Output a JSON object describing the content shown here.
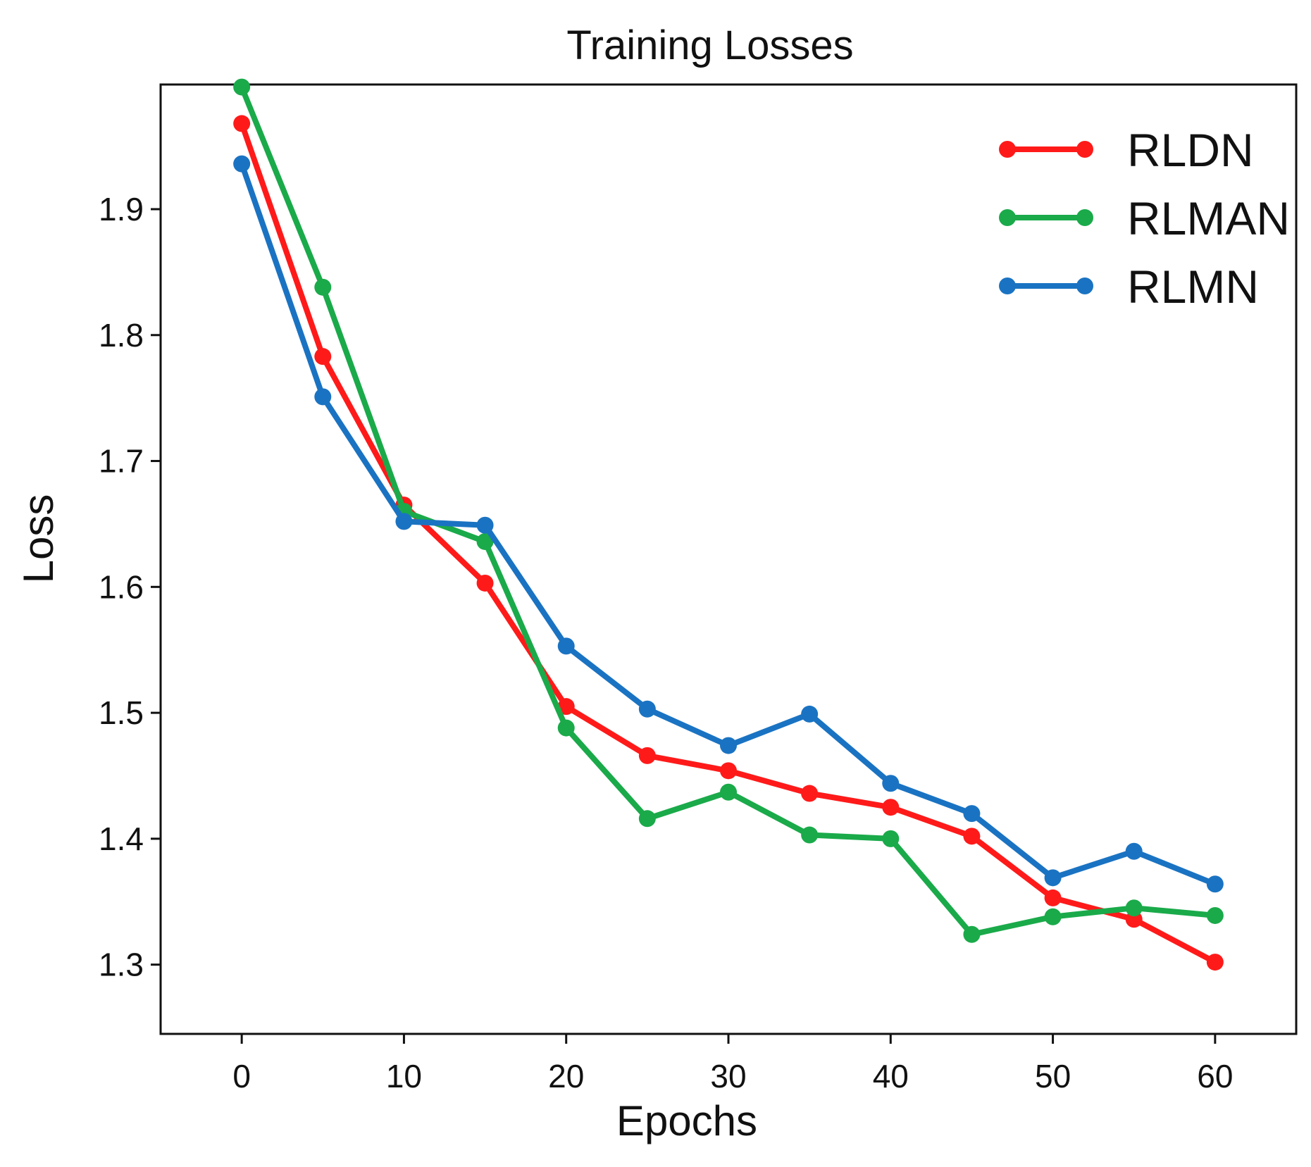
{
  "chart_data": {
    "type": "line",
    "title": "Training Losses",
    "xlabel": "Epochs",
    "ylabel": "Loss",
    "xlim": [
      -5,
      65
    ],
    "ylim": [
      1.245,
      1.999
    ],
    "xticks": [
      0,
      10,
      20,
      30,
      40,
      50,
      60
    ],
    "yticks": [
      1.3,
      1.4,
      1.5,
      1.6,
      1.7,
      1.8,
      1.9
    ],
    "xtick_labels": [
      "0",
      "10",
      "20",
      "30",
      "40",
      "50",
      "60"
    ],
    "ytick_labels": [
      "1.3",
      "1.4",
      "1.5",
      "1.6",
      "1.7",
      "1.8",
      "1.9"
    ],
    "x": [
      0,
      5,
      10,
      15,
      20,
      25,
      30,
      35,
      40,
      45,
      50,
      55,
      60
    ],
    "grid": false,
    "legend_position": "top-right",
    "series": [
      {
        "name": "RLDN",
        "color": "#ff1a1a",
        "values": [
          1.968,
          1.783,
          1.665,
          1.603,
          1.505,
          1.466,
          1.454,
          1.436,
          1.425,
          1.402,
          1.353,
          1.336,
          1.302
        ]
      },
      {
        "name": "RLMAN",
        "color": "#1aaa4a",
        "values": [
          1.997,
          1.838,
          1.66,
          1.636,
          1.488,
          1.416,
          1.437,
          1.403,
          1.4,
          1.324,
          1.338,
          1.345,
          1.339
        ]
      },
      {
        "name": "RLMN",
        "color": "#1a73c2",
        "values": [
          1.936,
          1.751,
          1.652,
          1.649,
          1.553,
          1.503,
          1.474,
          1.499,
          1.444,
          1.42,
          1.369,
          1.39,
          1.364
        ]
      }
    ]
  }
}
